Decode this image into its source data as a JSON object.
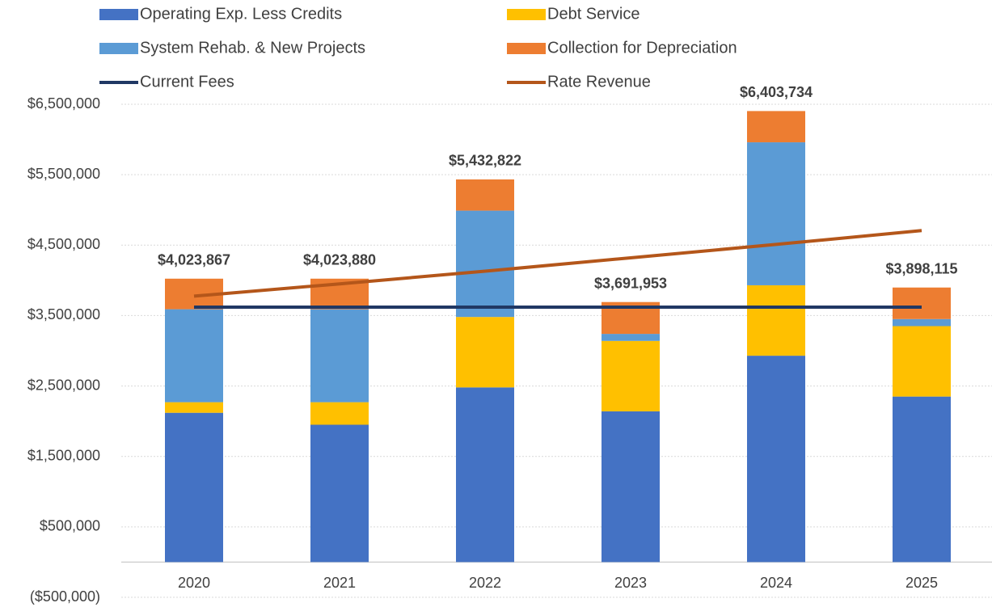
{
  "chart_data": {
    "type": "stacked_bar_line",
    "categories": [
      "2020",
      "2021",
      "2022",
      "2023",
      "2024",
      "2025"
    ],
    "series": [
      {
        "name": "Operating Exp. Less Credits",
        "color": "#4472c4",
        "kind": "bar",
        "values": [
          2120000,
          1950000,
          2480000,
          2140000,
          2930000,
          2350000
        ]
      },
      {
        "name": "Debt Service",
        "color": "#ffc000",
        "kind": "bar",
        "values": [
          150000,
          320000,
          1000000,
          1000000,
          1000000,
          1000000
        ]
      },
      {
        "name": "System Rehab. & New Projects",
        "color": "#5b9bd5",
        "kind": "bar",
        "values": [
          1320000,
          1320000,
          1510000,
          100000,
          2030000,
          100000
        ]
      },
      {
        "name": "Collection for Depreciation",
        "color": "#ed7d31",
        "kind": "bar",
        "values": [
          433867,
          433880,
          442822,
          451953,
          443734,
          448115
        ]
      },
      {
        "name": "Current Fees",
        "color": "#203864",
        "kind": "line",
        "values": [
          3620000,
          3620000,
          3620000,
          3620000,
          3620000,
          3620000
        ]
      },
      {
        "name": "Rate Revenue",
        "color": "#b4561a",
        "kind": "line",
        "values": [
          3776000,
          3950000,
          4130000,
          4320000,
          4510000,
          4707000
        ]
      }
    ],
    "totals": {
      "values": [
        4023867,
        4023880,
        5432822,
        3691953,
        6403734,
        3898115
      ],
      "value_labels": [
        "$4,023,867",
        "$4,023,880",
        "$5,432,822",
        "$3,691,953",
        "$6,403,734",
        "$3,898,115"
      ]
    },
    "ylim": [
      -500000,
      6500000
    ],
    "yticks": [
      {
        "value": -500000,
        "label": "($500,000)"
      },
      {
        "value": 500000,
        "label": "$500,000"
      },
      {
        "value": 1500000,
        "label": "$1,500,000"
      },
      {
        "value": 2500000,
        "label": "$2,500,000"
      },
      {
        "value": 3500000,
        "label": "$3,500,000"
      },
      {
        "value": 4500000,
        "label": "$4,500,000"
      },
      {
        "value": 5500000,
        "label": "$5,500,000"
      },
      {
        "value": 6500000,
        "label": "$6,500,000"
      }
    ],
    "grid": true
  }
}
